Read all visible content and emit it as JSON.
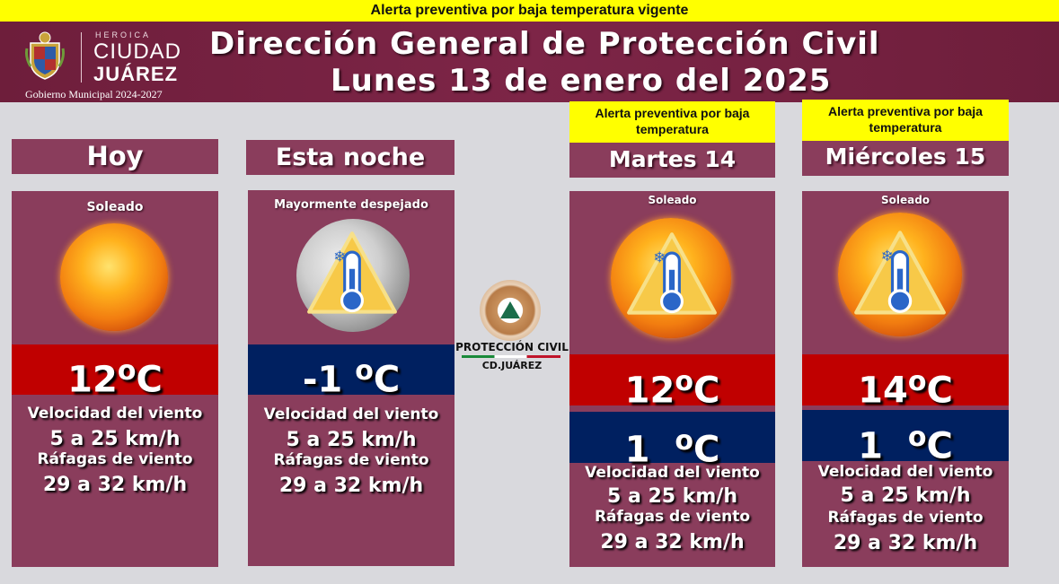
{
  "top_alert": "Alerta preventiva por baja temperatura vigente",
  "logo": {
    "heroica": "HEROICA",
    "ciudad": "CIUDAD",
    "juarez": "JUÁREZ",
    "gobierno": "Gobierno Municipal 2024-2027"
  },
  "title": {
    "line1": "Dirección General de Protección Civil",
    "line2": "Lunes 13 de enero del 2025"
  },
  "center_logo": {
    "name": "PROTECCIÓN CIVIL",
    "city": "CD.JUÁREZ"
  },
  "forecast": [
    {
      "day": "Hoy",
      "condition": "Soleado",
      "icon": "sun-icon",
      "high": "12",
      "unit": "C",
      "wind_label": "Velocidad del viento",
      "wind_value": "5 a 25 km/h",
      "gust_label": "Ráfagas de viento",
      "gust_value": "29 a 32 km/h"
    },
    {
      "day": "Esta noche",
      "condition": "Mayormente despejado",
      "icon": "moon-cold-warning-icon",
      "high": "-1",
      "unit": "C",
      "wind_label": "Velocidad del viento",
      "wind_value": "5 a 25 km/h",
      "gust_label": "Ráfagas de viento",
      "gust_value": "29 a 32 km/h"
    },
    {
      "day": "Martes 14",
      "alert": "Alerta preventiva por baja temperatura",
      "condition": "Soleado",
      "icon": "sun-cold-warning-icon",
      "high": "12",
      "low": "1",
      "unit": "C",
      "wind_label": "Velocidad del viento",
      "wind_value": "5 a 25 km/h",
      "gust_label": "Ráfagas de viento",
      "gust_value": "29 a 32 km/h"
    },
    {
      "day": "Miércoles 15",
      "alert": "Alerta preventiva por baja temperatura",
      "condition": "Soleado",
      "icon": "sun-cold-warning-icon",
      "high": "14",
      "low": "1",
      "unit": "C",
      "wind_label": "Velocidad del viento",
      "wind_value": "5 a 25 km/h",
      "gust_label": "Ráfagas de viento",
      "gust_value": "29 a 32 km/h"
    }
  ],
  "colors": {
    "alert_yellow": "#ffff00",
    "header_maroon": "#7d2547",
    "card_maroon": "#8a3d5c",
    "high_red": "#c00000",
    "low_navy": "#002060"
  }
}
